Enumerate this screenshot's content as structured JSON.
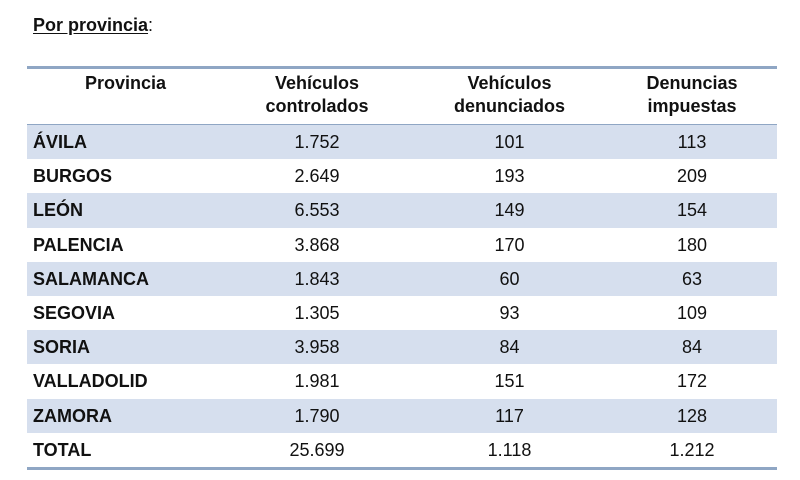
{
  "heading": {
    "text": "Por provincia",
    "suffix": ":"
  },
  "table": {
    "headers": [
      "Provincia",
      "Vehículos controlados",
      "Vehículos denunciados",
      "Denuncias impuestas"
    ],
    "rows": [
      [
        "ÁVILA",
        "1.752",
        "101",
        "113"
      ],
      [
        "BURGOS",
        "2.649",
        "193",
        "209"
      ],
      [
        "LEÓN",
        "6.553",
        "149",
        "154"
      ],
      [
        "PALENCIA",
        "3.868",
        "170",
        "180"
      ],
      [
        "SALAMANCA",
        "1.843",
        "60",
        "63"
      ],
      [
        "SEGOVIA",
        "1.305",
        "93",
        "109"
      ],
      [
        "SORIA",
        "3.958",
        "84",
        "84"
      ],
      [
        "VALLADOLID",
        "1.981",
        "151",
        "172"
      ],
      [
        "ZAMORA",
        "1.790",
        "117",
        "128"
      ],
      [
        "TOTAL",
        "25.699",
        "1.118",
        "1.212"
      ]
    ]
  },
  "colors": {
    "band": "#d6dfee",
    "rule": "#8fa6c4"
  }
}
